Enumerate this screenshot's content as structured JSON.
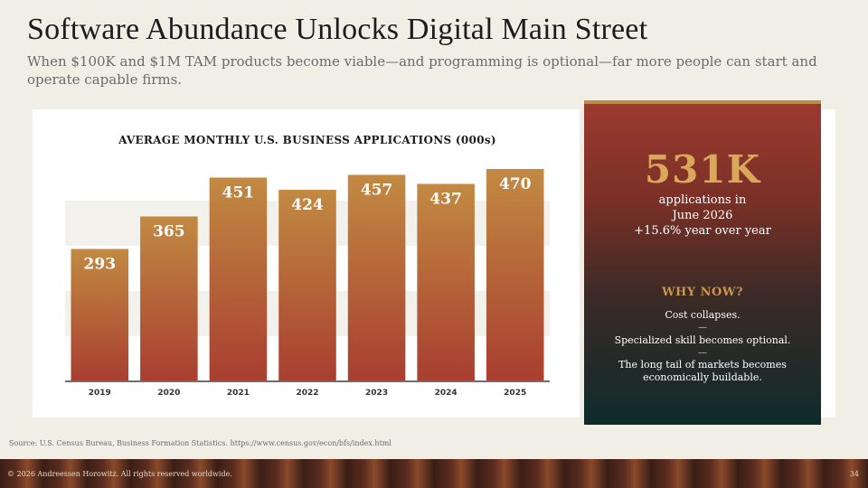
{
  "title": "Software Abundance Unlocks Digital Main Street",
  "subtitle": "When $100K and $1M TAM products become viable—and programming is optional—far more people can start and operate capable firms.",
  "chart_data": {
    "type": "bar",
    "title": "AVERAGE MONTHLY U.S. BUSINESS APPLICATIONS (000s)",
    "categories": [
      "2019",
      "2020",
      "2021",
      "2022",
      "2023",
      "2024",
      "2025"
    ],
    "values": [
      293,
      365,
      451,
      424,
      457,
      437,
      470
    ],
    "data_labels": [
      "293",
      "365",
      "451",
      "424",
      "457",
      "437",
      "470"
    ],
    "xlabel": "",
    "ylabel": "",
    "ylim": [
      0,
      500
    ],
    "grid": "horizontal bands",
    "bar_color_top": "#c28a42",
    "bar_color_bottom": "#a83e30"
  },
  "highlight": {
    "value": "531K",
    "line1": "applications in",
    "line2": "June 2026",
    "line3": "+15.6% year over year"
  },
  "why_now": {
    "heading": "WHY NOW?",
    "items": [
      "Cost collapses.",
      "Specialized skill becomes optional.",
      "The long tail of markets becomes economically buildable."
    ],
    "separator": "—"
  },
  "source": "Source: U.S. Census Bureau, Business Formation Statistics. https://www.census.gov/econ/bfs/index.html",
  "footer": {
    "copyright": "© 2026 Andreessen Horowitz. All rights reserved worldwide.",
    "page_number": "34"
  }
}
